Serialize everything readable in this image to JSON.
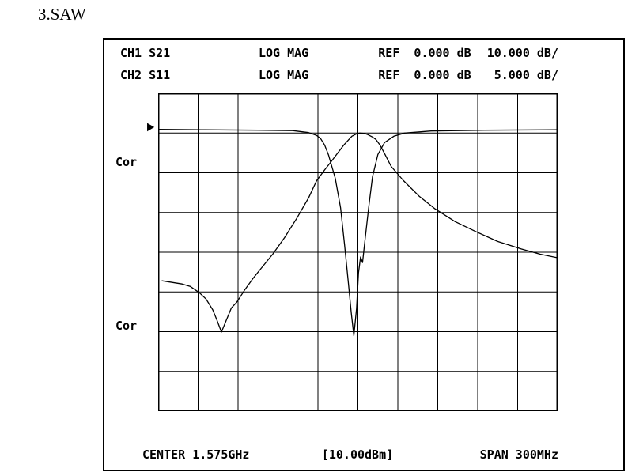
{
  "page": {
    "title": "3.SAW"
  },
  "instrument": {
    "header": {
      "rows": [
        {
          "channel": "CH1 S21",
          "format": "LOG MAG",
          "ref": "REF  0.000 dB",
          "scale": "10.000 dB/"
        },
        {
          "channel": "CH2 S11",
          "format": "LOG MAG",
          "ref": "REF  0.000 dB",
          "scale": " 5.000 dB/"
        }
      ]
    },
    "side_labels": {
      "cor_top": "Cor",
      "cor_bottom": "Cor"
    },
    "marker": {
      "ref_arrow": "▶"
    },
    "footer": {
      "center": "CENTER 1.575GHz",
      "power": "[10.00dBm]",
      "span": "SPAN 300MHz"
    }
  },
  "chart_data": {
    "type": "line",
    "title": "",
    "grid": true,
    "x_axis": {
      "center_label": "CENTER 1.575GHz",
      "span_label": "SPAN 300MHz",
      "min_GHz": 1.425,
      "max_GHz": 1.725,
      "divisions": 10
    },
    "y_axis": {
      "divisions": 8,
      "ref_offset_div": 0.9,
      "ch1": {
        "name": "CH1 S21",
        "format": "LOG MAG",
        "ref_dB": 0.0,
        "scale_dB_per_div": 10.0
      },
      "ch2": {
        "name": "CH2 S11",
        "format": "LOG MAG",
        "ref_dB": 0.0,
        "scale_dB_per_div": 5.0
      }
    },
    "series": [
      {
        "name": "CH1 S21",
        "scale_dB_per_div": 10,
        "points": [
          [
            1.428,
            -38.2
          ],
          [
            1.443,
            -39.0
          ],
          [
            1.449,
            -39.6
          ],
          [
            1.456,
            -41.2
          ],
          [
            1.461,
            -42.8
          ],
          [
            1.466,
            -45.5
          ],
          [
            1.469,
            -48.0
          ],
          [
            1.4725,
            -51.1
          ],
          [
            1.476,
            -48.3
          ],
          [
            1.48,
            -45.0
          ],
          [
            1.484,
            -43.6
          ],
          [
            1.49,
            -40.5
          ],
          [
            1.496,
            -37.7
          ],
          [
            1.502,
            -35.2
          ],
          [
            1.511,
            -31.5
          ],
          [
            1.52,
            -27.3
          ],
          [
            1.529,
            -22.5
          ],
          [
            1.538,
            -17.3
          ],
          [
            1.544,
            -13.0
          ],
          [
            1.55,
            -10.3
          ],
          [
            1.5545,
            -8.4
          ],
          [
            1.559,
            -6.4
          ],
          [
            1.5645,
            -4.0
          ],
          [
            1.5705,
            -1.8
          ],
          [
            1.574,
            -1.2
          ],
          [
            1.5765,
            -1.0
          ],
          [
            1.58,
            -1.1
          ],
          [
            1.5825,
            -1.4
          ],
          [
            1.586,
            -2.0
          ],
          [
            1.5885,
            -2.6
          ],
          [
            1.5915,
            -4.0
          ],
          [
            1.5945,
            -5.8
          ],
          [
            1.6,
            -9.4
          ],
          [
            1.609,
            -12.9
          ],
          [
            1.621,
            -16.9
          ],
          [
            1.633,
            -20.1
          ],
          [
            1.648,
            -23.3
          ],
          [
            1.663,
            -25.7
          ],
          [
            1.68,
            -28.3
          ],
          [
            1.698,
            -30.2
          ],
          [
            1.712,
            -31.5
          ],
          [
            1.725,
            -32.4
          ]
        ]
      },
      {
        "name": "CH2 S11",
        "scale_dB_per_div": 5,
        "points": [
          [
            1.425,
            -0.05
          ],
          [
            1.46,
            -0.1
          ],
          [
            1.5,
            -0.15
          ],
          [
            1.526,
            -0.2
          ],
          [
            1.538,
            -0.45
          ],
          [
            1.544,
            -0.8
          ],
          [
            1.547,
            -1.2
          ],
          [
            1.55,
            -2.0
          ],
          [
            1.553,
            -3.3
          ],
          [
            1.558,
            -6.2
          ],
          [
            1.562,
            -9.9
          ],
          [
            1.565,
            -14.6
          ],
          [
            1.568,
            -19.6
          ],
          [
            1.57,
            -23.1
          ],
          [
            1.572,
            -26.0
          ],
          [
            1.574,
            -22.6
          ],
          [
            1.5755,
            -18.1
          ],
          [
            1.577,
            -16.1
          ],
          [
            1.5785,
            -16.8
          ],
          [
            1.58,
            -14.5
          ],
          [
            1.583,
            -10.0
          ],
          [
            1.586,
            -6.0
          ],
          [
            1.59,
            -3.2
          ],
          [
            1.595,
            -1.7
          ],
          [
            1.602,
            -0.9
          ],
          [
            1.61,
            -0.5
          ],
          [
            1.63,
            -0.25
          ],
          [
            1.67,
            -0.15
          ],
          [
            1.725,
            -0.1
          ]
        ]
      }
    ]
  }
}
